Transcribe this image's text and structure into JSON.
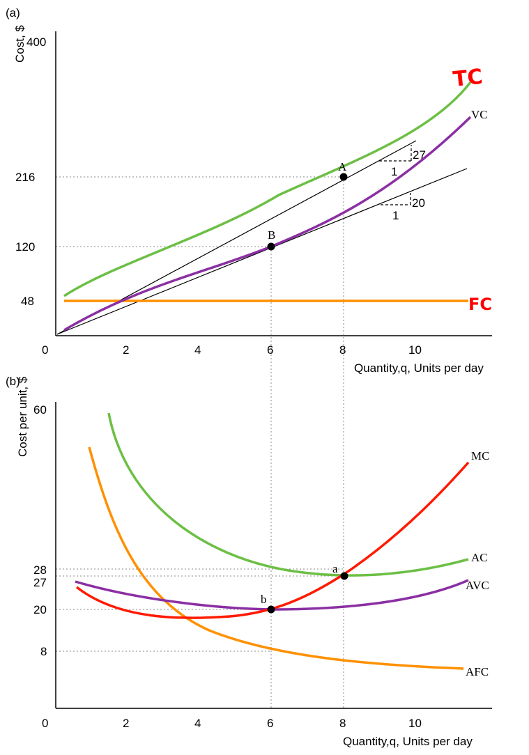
{
  "colors": {
    "tc": "#6cbf45",
    "vc": "#8b2fa3",
    "fc": "#ff9000",
    "mc": "#ff1a00",
    "ac": "#6cbf45",
    "avc": "#8b2fa3",
    "afc": "#ff9000",
    "handwriting": "#ff0000"
  },
  "chart_data": [
    {
      "panel_label": "(a)",
      "type": "line",
      "ylabel": "Cost, $",
      "xlabel": "Quantity,q, Units per day",
      "x_ticks": [
        "0",
        "2",
        "4",
        "6",
        "8",
        "10"
      ],
      "y_ticks": [
        "48",
        "120",
        "216",
        "400"
      ],
      "xlim": [
        0,
        12
      ],
      "ylim": [
        0,
        400
      ],
      "series": [
        {
          "name": "TC",
          "x": [
            0.3,
            2,
            4,
            6,
            8,
            10,
            11.4
          ],
          "y": [
            52,
            96,
            136,
            170,
            216,
            290,
            364
          ]
        },
        {
          "name": "VC",
          "x": [
            0.3,
            2,
            4,
            6,
            8,
            10,
            11.4
          ],
          "y": [
            4,
            48,
            85,
            120,
            168,
            245,
            318
          ]
        },
        {
          "name": "FC",
          "x": [
            0.3,
            11.4
          ],
          "y": [
            48,
            48
          ]
        }
      ],
      "rays": [
        {
          "from": [
            0,
            0
          ],
          "to": [
            10,
            270
          ]
        },
        {
          "from": [
            0,
            0
          ],
          "to": [
            11.4,
            228
          ]
        }
      ],
      "points": [
        {
          "label": "A",
          "x": 8,
          "y": 216
        },
        {
          "label": "B",
          "x": 6,
          "y": 120
        }
      ],
      "slope_triangles": [
        {
          "rise_label": "27",
          "run_label": "1"
        },
        {
          "rise_label": "20",
          "run_label": "1"
        }
      ],
      "handwritten_labels": [
        "TC",
        "FC"
      ],
      "grid": false
    },
    {
      "panel_label": "(b)",
      "type": "line",
      "ylabel": "Cost per unit, $",
      "xlabel": "Quantity,q, Units per day",
      "x_ticks": [
        "0",
        "2",
        "4",
        "6",
        "8",
        "10"
      ],
      "y_ticks": [
        "8",
        "20",
        "27",
        "28",
        "60"
      ],
      "xlim": [
        0,
        12
      ],
      "ylim": [
        0,
        60
      ],
      "series": [
        {
          "name": "MC",
          "x": [
            0.6,
            2,
            4,
            6,
            8,
            10,
            11.4
          ],
          "y": [
            26,
            21.5,
            19,
            20,
            28,
            41,
            55
          ]
        },
        {
          "name": "AC",
          "x": [
            1.5,
            2,
            4,
            6,
            8,
            10,
            11.4
          ],
          "y": [
            58,
            49,
            34,
            28.5,
            27,
            27.8,
            29.5
          ]
        },
        {
          "name": "AVC",
          "x": [
            0.6,
            2,
            4,
            6,
            8,
            10,
            11.4
          ],
          "y": [
            27.5,
            23,
            21,
            20,
            21,
            23.5,
            27.5
          ]
        },
        {
          "name": "AFC",
          "x": [
            1,
            2,
            4,
            6,
            8,
            10,
            11.3
          ],
          "y": [
            52,
            24,
            12,
            8,
            6.5,
            5.5,
            5
          ]
        }
      ],
      "points": [
        {
          "label": "a",
          "x": 8,
          "y": 27
        },
        {
          "label": "b",
          "x": 6,
          "y": 20
        }
      ],
      "grid": false
    }
  ]
}
